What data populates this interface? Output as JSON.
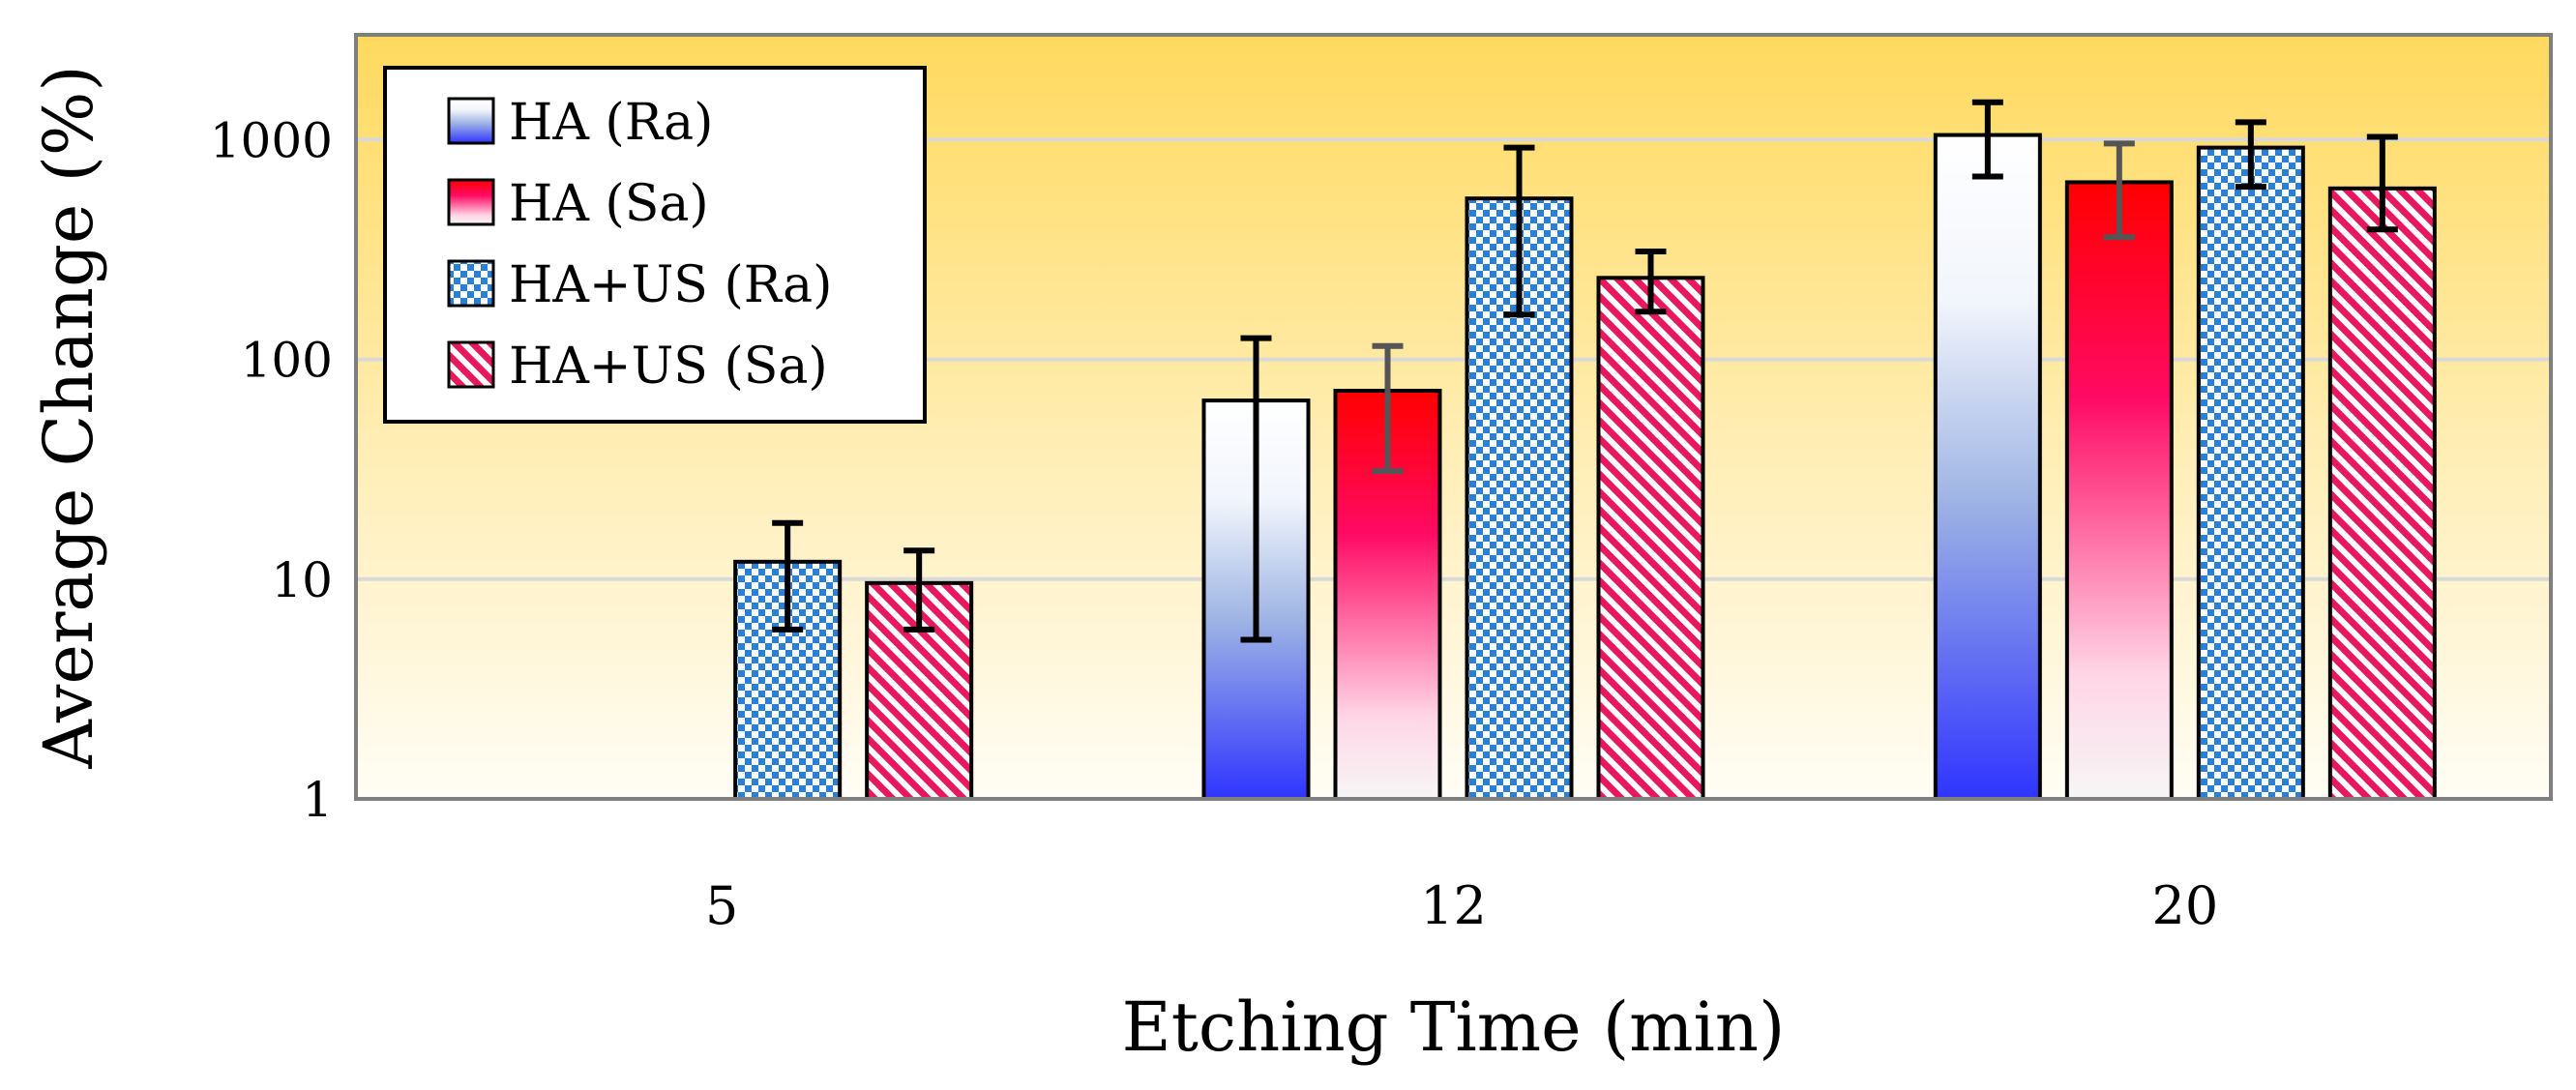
{
  "chart_data": {
    "type": "bar",
    "scale": "log",
    "xlabel": "Etching Time (min)",
    "ylabel": "Average Change (%)",
    "categories": [
      "5",
      "12",
      "20"
    ],
    "ylim": [
      1,
      3000
    ],
    "yticks": [
      1,
      10,
      100,
      1000
    ],
    "ytick_labels": [
      "1",
      "10",
      "100",
      "1000"
    ],
    "grid": true,
    "legend_position": "top-left",
    "series": [
      {
        "name": "HA (Ra)",
        "fill": "gradient-blue",
        "values": [
          null,
          65,
          1050
        ],
        "err_low": [
          null,
          5.3,
          680
        ],
        "err_high": [
          null,
          125,
          1480
        ]
      },
      {
        "name": "HA (Sa)",
        "fill": "gradient-red",
        "values": [
          null,
          72,
          640
        ],
        "err_low": [
          null,
          31,
          360
        ],
        "err_high": [
          null,
          115,
          960
        ]
      },
      {
        "name": "HA+US (Ra)",
        "fill": "checker-blue",
        "values": [
          12,
          540,
          920
        ],
        "err_low": [
          5.9,
          160,
          610
        ],
        "err_high": [
          18,
          920,
          1200
        ]
      },
      {
        "name": "HA+US (Sa)",
        "fill": "stripe-red",
        "values": [
          9.6,
          235,
          600
        ],
        "err_low": [
          5.9,
          165,
          390
        ],
        "err_high": [
          13.5,
          310,
          1030
        ]
      }
    ]
  }
}
